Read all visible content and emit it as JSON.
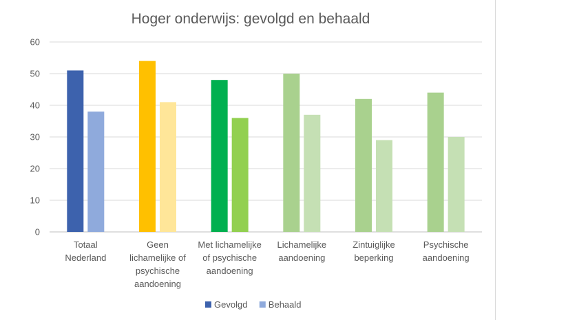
{
  "chart_data": {
    "type": "bar",
    "title": "Hoger onderwijs: gevolgd en behaald",
    "ylim": [
      0,
      60
    ],
    "yticks": [
      0,
      10,
      20,
      30,
      40,
      50,
      60
    ],
    "grid": true,
    "legend_position": "bottom",
    "categories": [
      [
        "Totaal",
        "Nederland"
      ],
      [
        "Geen",
        "lichamelijke of",
        "psychische",
        "aandoening"
      ],
      [
        "Met lichamelijke",
        "of psychische",
        "aandoening"
      ],
      [
        "Lichamelijke",
        "aandoening"
      ],
      [
        "Zintuiglijke",
        "beperking"
      ],
      [
        "Psychische",
        "aandoening"
      ]
    ],
    "series": [
      {
        "name": "Gevolgd",
        "values": [
          51,
          54,
          48,
          50,
          42,
          44
        ],
        "colors": [
          "#3d62ad",
          "#ffc000",
          "#00b050",
          "#a9d18e",
          "#a9d18e",
          "#a9d18e"
        ]
      },
      {
        "name": "Behaald",
        "values": [
          38,
          41,
          36,
          37,
          29,
          30
        ],
        "colors": [
          "#8faadc",
          "#ffe699",
          "#92d050",
          "#c5e0b4",
          "#c5e0b4",
          "#c5e0b4"
        ]
      }
    ],
    "legend_colors": [
      "#3d62ad",
      "#8faadc"
    ]
  }
}
